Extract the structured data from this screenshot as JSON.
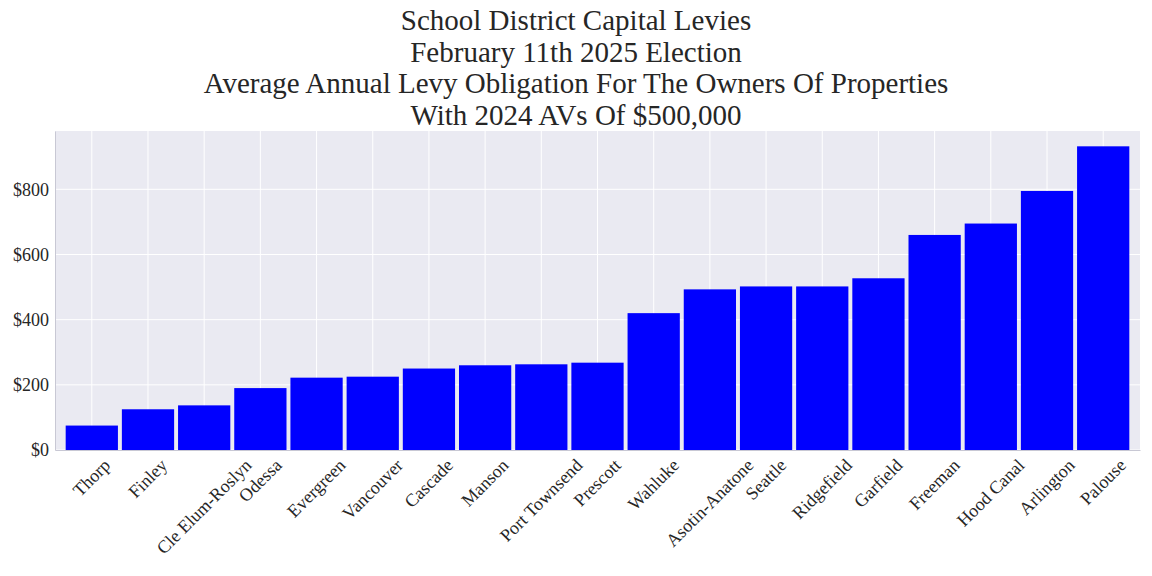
{
  "chart_data": {
    "type": "bar",
    "title": "School District Capital Levies\nFebruary 11th 2025 Election\nAverage Annual Levy Obligation For The Owners Of Properties\nWith 2024 AVs Of $500,000",
    "categories": [
      "Thorp",
      "Finley",
      "Cle Elum-Roslyn",
      "Odessa",
      "Evergreen",
      "Vancouver",
      "Cascade",
      "Manson",
      "Port Townsend",
      "Prescott",
      "Wahluke",
      "Asotin-Anatone",
      "Seattle",
      "Ridgefield",
      "Garfield",
      "Freeman",
      "Hood Canal",
      "Arlington",
      "Palouse"
    ],
    "values": [
      75,
      125,
      137,
      190,
      222,
      225,
      250,
      260,
      263,
      268,
      420,
      493,
      502,
      502,
      527,
      660,
      695,
      795,
      932
    ],
    "color": "#0000ff",
    "ylim": [
      0,
      979
    ],
    "yticks": [
      {
        "value": 0,
        "label": "$0"
      },
      {
        "value": 200,
        "label": "$200"
      },
      {
        "value": 400,
        "label": "$400"
      },
      {
        "value": 600,
        "label": "$600"
      },
      {
        "value": 800,
        "label": "$800"
      }
    ],
    "grid": true
  }
}
